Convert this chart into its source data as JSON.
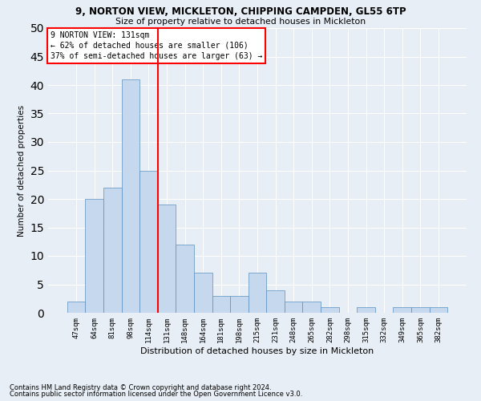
{
  "title1": "9, NORTON VIEW, MICKLETON, CHIPPING CAMPDEN, GL55 6TP",
  "title2": "Size of property relative to detached houses in Mickleton",
  "xlabel": "Distribution of detached houses by size in Mickleton",
  "ylabel": "Number of detached properties",
  "footnote1": "Contains HM Land Registry data © Crown copyright and database right 2024.",
  "footnote2": "Contains public sector information licensed under the Open Government Licence v3.0.",
  "bins": [
    "47sqm",
    "64sqm",
    "81sqm",
    "98sqm",
    "114sqm",
    "131sqm",
    "148sqm",
    "164sqm",
    "181sqm",
    "198sqm",
    "215sqm",
    "231sqm",
    "248sqm",
    "265sqm",
    "282sqm",
    "298sqm",
    "315sqm",
    "332sqm",
    "349sqm",
    "365sqm",
    "382sqm"
  ],
  "values": [
    2,
    20,
    22,
    41,
    25,
    19,
    12,
    7,
    3,
    3,
    7,
    4,
    2,
    2,
    1,
    0,
    1,
    0,
    1,
    1,
    1
  ],
  "bar_color": "#c5d8ed",
  "bar_edge_color": "#5a8fc0",
  "vline_color": "red",
  "vline_index": 4.5,
  "annotation_text": "9 NORTON VIEW: 131sqm\n← 62% of detached houses are smaller (106)\n37% of semi-detached houses are larger (63) →",
  "annotation_box_color": "white",
  "annotation_box_edgecolor": "red",
  "bg_color": "#e8eef5",
  "grid_color": "white",
  "ylim": [
    0,
    50
  ],
  "yticks": [
    0,
    5,
    10,
    15,
    20,
    25,
    30,
    35,
    40,
    45,
    50
  ]
}
